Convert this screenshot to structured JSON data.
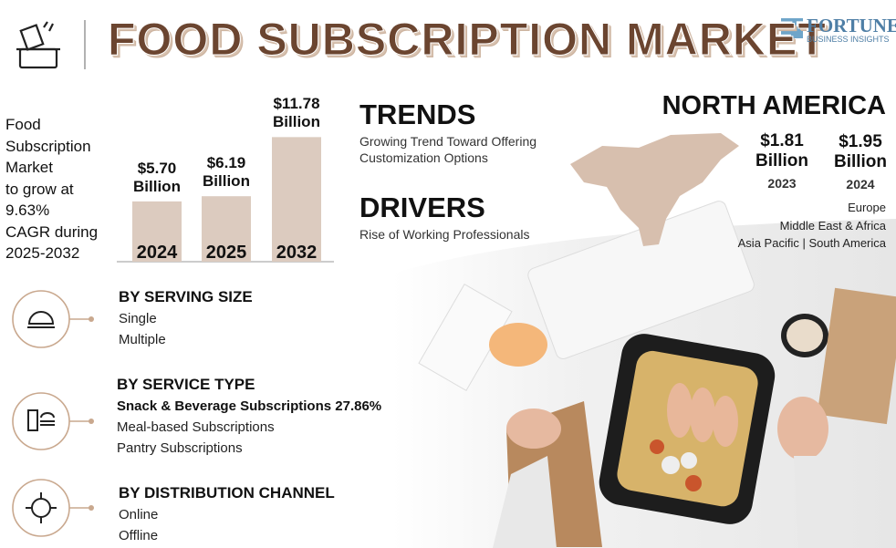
{
  "header": {
    "title": "FOOD SUBSCRIPTION MARKET",
    "brand": "FORTUNE",
    "brand_sub": "BUSINESS INSIGHTS"
  },
  "summary": {
    "lines": [
      "Food",
      "Subscription",
      "Market",
      "to grow at",
      "9.63%",
      "CAGR during",
      "2025-2032"
    ]
  },
  "chart_data": {
    "type": "bar",
    "categories": [
      "2024",
      "2025",
      "2032"
    ],
    "values": [
      5.7,
      6.19,
      11.78
    ],
    "value_labels": [
      "$5.70 Billion",
      "$6.19 Billion",
      "$11.78 Billion"
    ],
    "color": "#dccbbf"
  },
  "trends": {
    "title": "TRENDS",
    "text": "Growing Trend Toward Offering Customization Options"
  },
  "drivers": {
    "title": "DRIVERS",
    "text": "Rise of Working Professionals"
  },
  "region": {
    "title": "NORTH AMERICA",
    "stats": [
      {
        "value": "$1.81 Billion",
        "year": "2023"
      },
      {
        "value": "$1.95 Billion",
        "year": "2024"
      }
    ],
    "others": [
      "Europe",
      "Middle East & Africa",
      "Asia Pacific",
      "South America"
    ]
  },
  "segments": [
    {
      "title": "BY SERVING SIZE",
      "items": [
        "Single",
        "Multiple"
      ]
    },
    {
      "title": "BY SERVICE TYPE",
      "items": [
        "Snack & Beverage Subscriptions 27.86%",
        "Meal-based Subscriptions",
        "Pantry Subscriptions"
      ]
    },
    {
      "title": "BY DISTRIBUTION CHANNEL",
      "items": [
        "Online",
        "Offline"
      ]
    }
  ]
}
